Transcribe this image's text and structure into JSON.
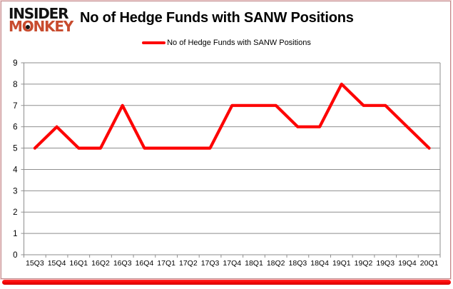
{
  "brand": {
    "line1": "INSIDER",
    "line2": "MONKEY"
  },
  "header": {
    "title": "No of Hedge Funds with SANW Positions"
  },
  "legend": {
    "label": "No of Hedge Funds with SANW Positions"
  },
  "chart_data": {
    "type": "line",
    "title": "No of Hedge Funds with SANW Positions",
    "categories": [
      "15Q3",
      "15Q4",
      "16Q1",
      "16Q2",
      "16Q3",
      "16Q4",
      "17Q1",
      "17Q2",
      "17Q3",
      "17Q4",
      "18Q1",
      "18Q2",
      "18Q3",
      "18Q4",
      "19Q1",
      "19Q2",
      "19Q3",
      "19Q4",
      "20Q1"
    ],
    "series": [
      {
        "name": "No of Hedge Funds with SANW Positions",
        "values": [
          5,
          6,
          5,
          5,
          7,
          5,
          5,
          5,
          5,
          7,
          7,
          7,
          6,
          6,
          8,
          7,
          7,
          6,
          5
        ],
        "color": "#fd0202"
      }
    ],
    "ylim": [
      0,
      9
    ],
    "ytick_step": 1,
    "grid": true,
    "legend_position": "top-center",
    "xlabel": "",
    "ylabel": ""
  },
  "colors": {
    "accent_red": "#fd0202",
    "brand_red": "#c84b2e",
    "grid": "#8e8e8e",
    "text": "#000000",
    "frame_bottom_red": "#f60404"
  }
}
